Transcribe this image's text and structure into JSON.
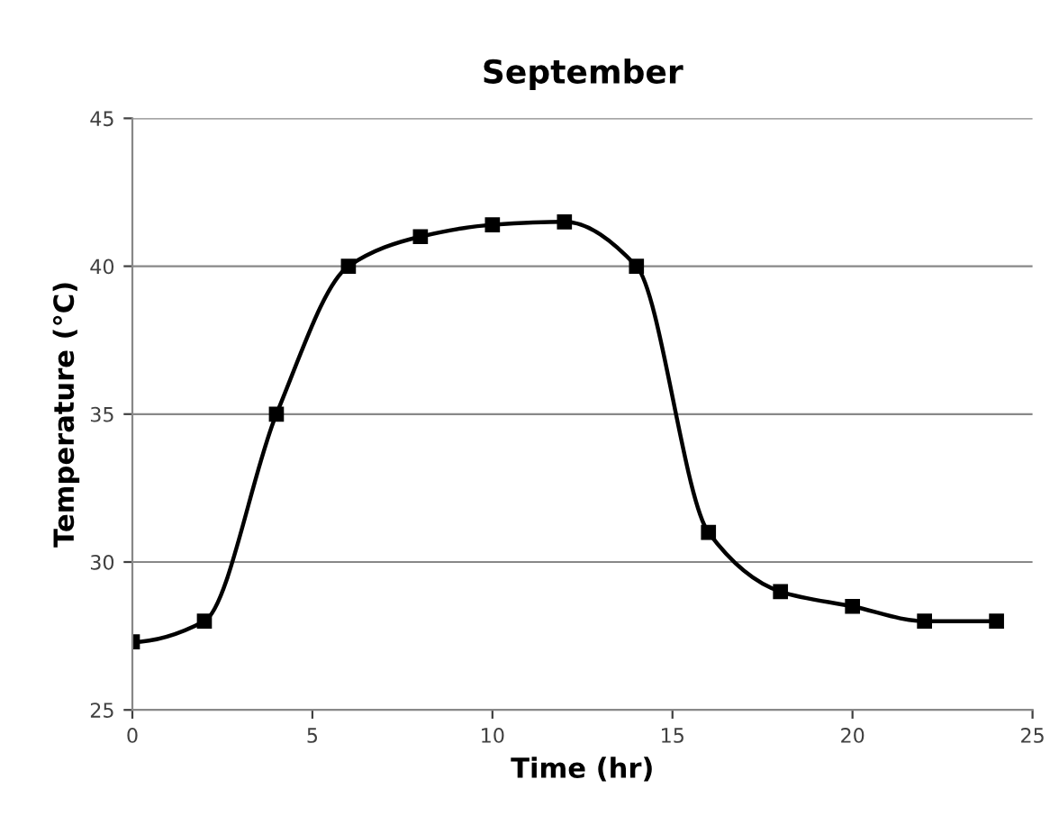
{
  "chart_data": {
    "type": "line",
    "title": "September",
    "xlabel": "Time (hr)",
    "ylabel": "Temperature (°C)",
    "x": [
      0,
      2,
      4,
      6,
      8,
      10,
      12,
      14,
      16,
      18,
      20,
      22,
      24
    ],
    "series": [
      {
        "color": "#000000",
        "values": [
          27.3,
          28,
          35,
          40,
          41,
          41.4,
          41.5,
          40,
          31,
          29,
          28.5,
          28,
          28
        ]
      }
    ],
    "xlim": [
      0,
      25
    ],
    "xticks": [
      0,
      5,
      10,
      15,
      20,
      25
    ],
    "ylim": [
      25,
      45
    ],
    "yticks": [
      25,
      30,
      35,
      40,
      45
    ],
    "grid": "y",
    "legend": false,
    "marker": "square",
    "line_style": "solid"
  }
}
